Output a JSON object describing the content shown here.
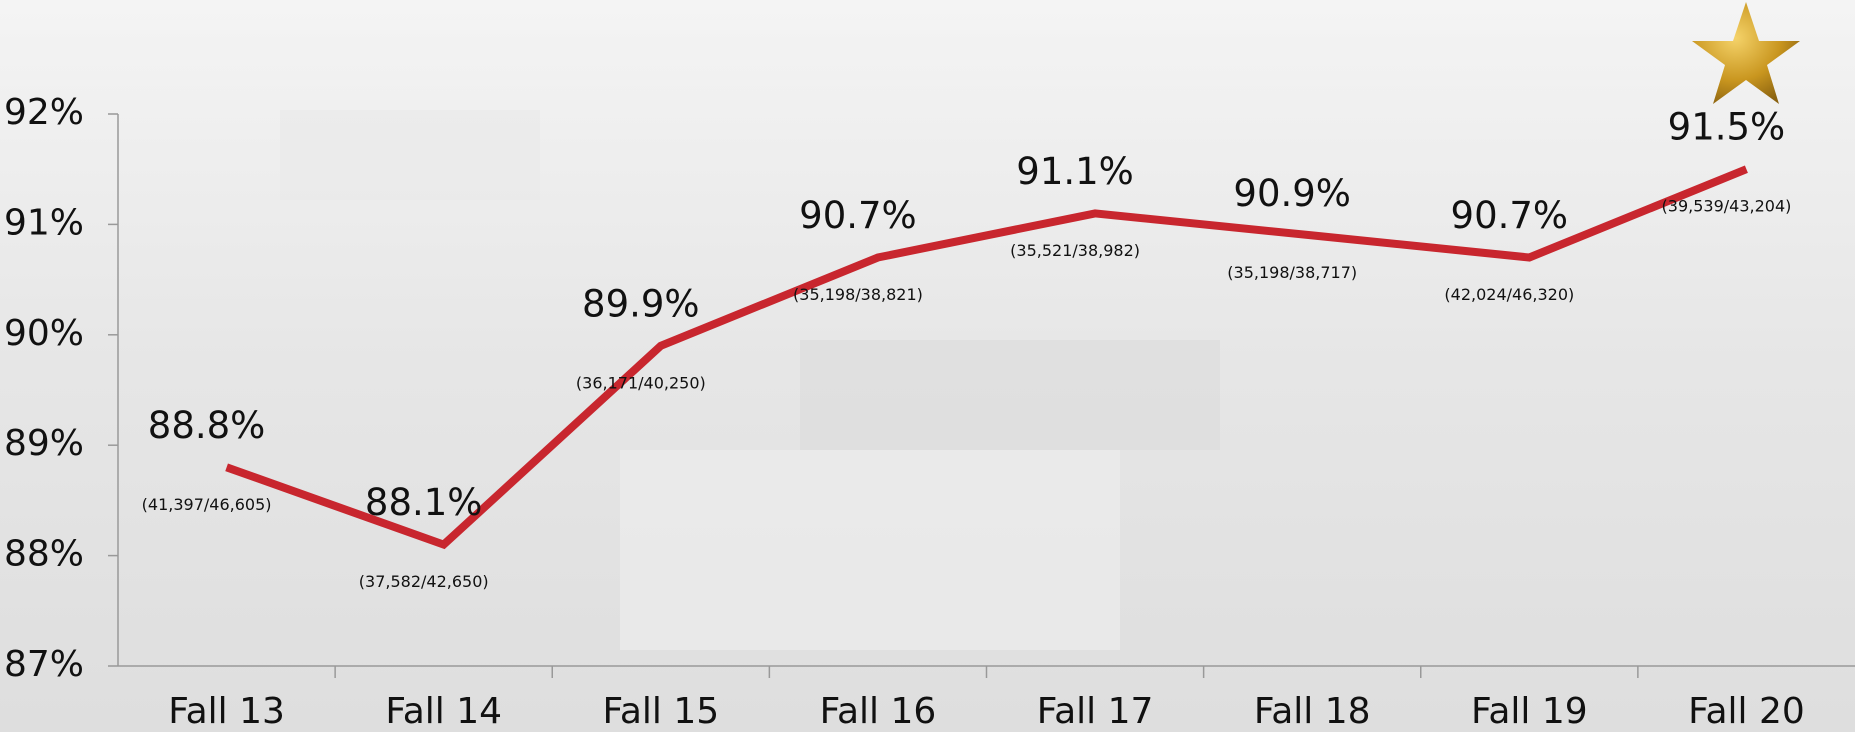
{
  "chart_data": {
    "type": "line",
    "categories": [
      "Fall 13",
      "Fall 14",
      "Fall 15",
      "Fall 16",
      "Fall 17",
      "Fall 18",
      "Fall 19",
      "Fall 20"
    ],
    "values": [
      88.8,
      88.1,
      89.9,
      90.7,
      91.1,
      90.9,
      90.7,
      91.5
    ],
    "value_labels": [
      "88.8%",
      "88.1%",
      "89.9%",
      "90.7%",
      "91.1%",
      "90.9%",
      "90.7%",
      "91.5%"
    ],
    "annotations": [
      "(41,397/46,605)",
      "(37,582/42,650)",
      "(36,171/40,250)",
      "(35,198/38,821)",
      "(35,521/38,982)",
      "(35,198/38,717)",
      "(42,024/46,320)",
      "(39,539/43,204)"
    ],
    "color": "#c8262e",
    "ylim": [
      87,
      92
    ],
    "yticks": [
      {
        "value": 87,
        "label": "87%"
      },
      {
        "value": 88,
        "label": "88%"
      },
      {
        "value": 89,
        "label": "89%"
      },
      {
        "value": 90,
        "label": "90%"
      },
      {
        "value": 91,
        "label": "91%"
      },
      {
        "value": 92,
        "label": "92%"
      }
    ],
    "grid": false
  }
}
